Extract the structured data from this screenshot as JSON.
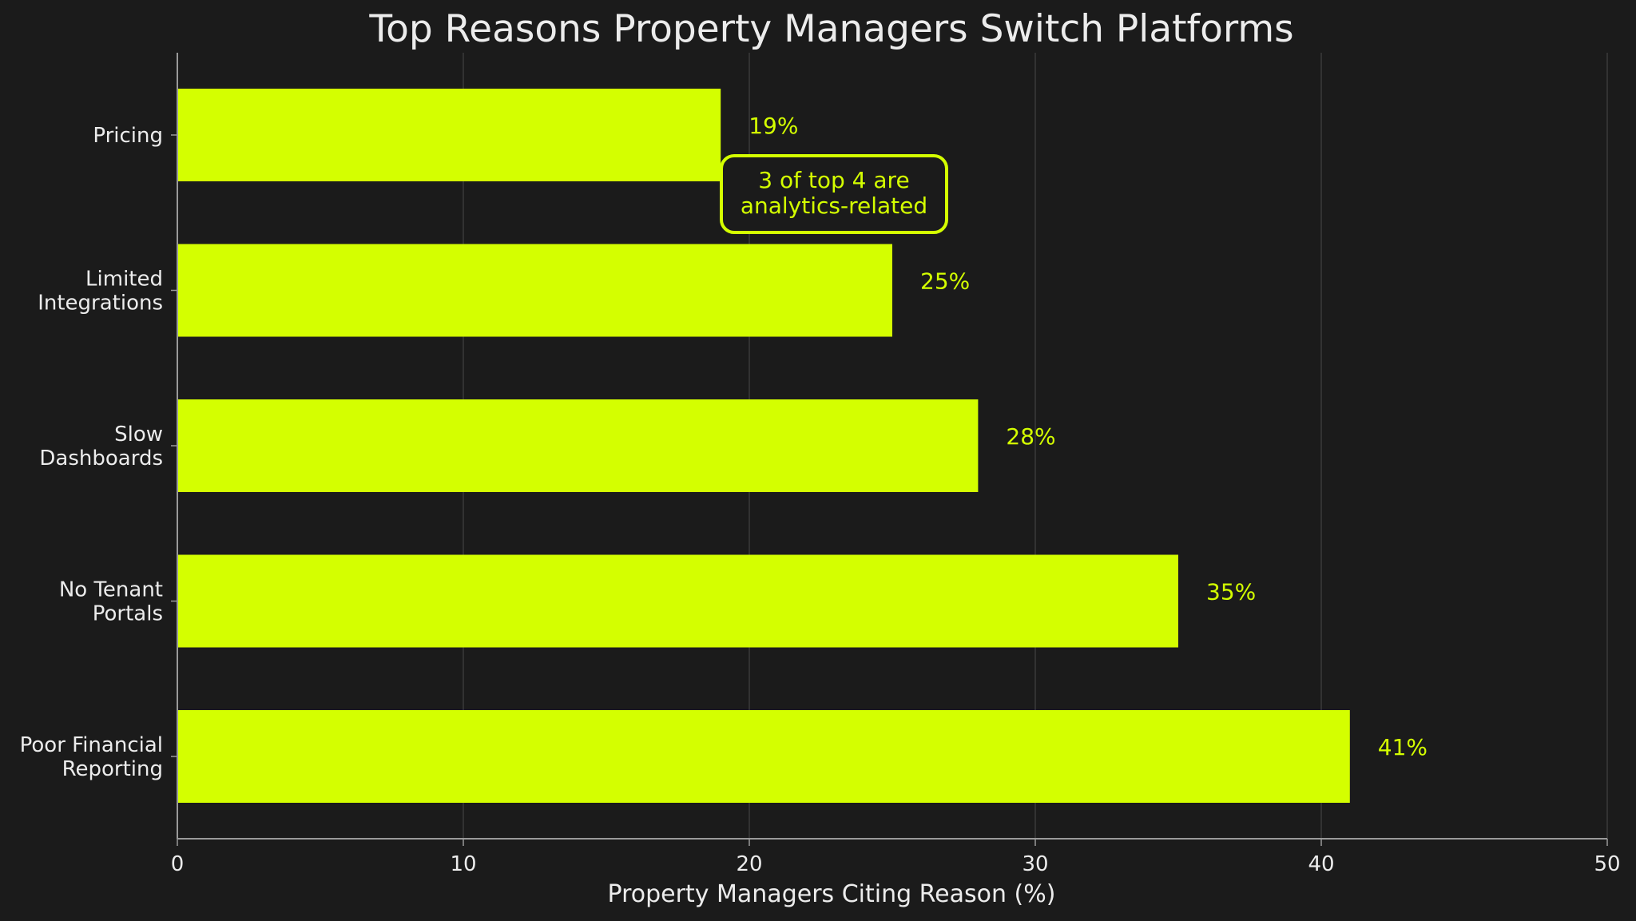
{
  "chart_data": {
    "type": "bar",
    "orientation": "horizontal",
    "title": "Top Reasons Property Managers Switch Platforms",
    "xlabel": "Property Managers Citing Reason (%)",
    "ylabel": "",
    "xlim": [
      0,
      50
    ],
    "xticks": [
      0,
      10,
      20,
      30,
      40,
      50
    ],
    "grid": "vertical",
    "categories": [
      "Pricing",
      "Limited\nIntegrations",
      "Slow\nDashboards",
      "No Tenant\nPortals",
      "Poor Financial\nReporting"
    ],
    "values": [
      19,
      25,
      28,
      35,
      41
    ],
    "value_labels": [
      "19%",
      "25%",
      "28%",
      "35%",
      "41%"
    ],
    "annotation": {
      "text": "3 of top 4 are\nanalytics-related"
    },
    "colors": {
      "background": "#1b1b1b",
      "bar": "#d4ff00",
      "accent": "#d4ff00",
      "text": "#ececec",
      "grid": "#3a3a3a",
      "axis": "#9a9a9a"
    }
  }
}
